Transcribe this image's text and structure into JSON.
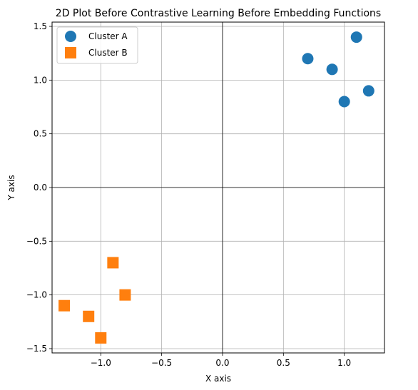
{
  "chart_data": {
    "type": "scatter",
    "title": "2D Plot Before Contrastive Learning Before Embedding Functions",
    "xlabel": "X axis",
    "ylabel": "Y axis",
    "xlim": [
      -1.4,
      1.33
    ],
    "ylim": [
      -1.54,
      1.54
    ],
    "xticks": [
      -1.0,
      -0.5,
      0.0,
      0.5,
      1.0
    ],
    "xtick_labels": [
      "−1.0",
      "−0.5",
      "0.0",
      "0.5",
      "1.0"
    ],
    "yticks": [
      -1.5,
      -1.0,
      -0.5,
      0.0,
      0.5,
      1.0,
      1.5
    ],
    "ytick_labels": [
      "−1.5",
      "−1.0",
      "−0.5",
      "0.0",
      "0.5",
      "1.0",
      "1.5"
    ],
    "grid": true,
    "zero_lines": true,
    "legend_position": "top-left",
    "series": [
      {
        "name": "Cluster A",
        "marker": "circle",
        "color": "#1f77b4",
        "points": [
          [
            0.7,
            1.2
          ],
          [
            0.9,
            1.1
          ],
          [
            1.1,
            1.4
          ],
          [
            1.0,
            0.8
          ],
          [
            1.2,
            0.9
          ]
        ]
      },
      {
        "name": "Cluster B",
        "marker": "square",
        "color": "#ff7f0e",
        "points": [
          [
            -0.9,
            -0.7
          ],
          [
            -0.8,
            -1.0
          ],
          [
            -1.3,
            -1.1
          ],
          [
            -1.1,
            -1.2
          ],
          [
            -1.0,
            -1.4
          ]
        ]
      }
    ]
  }
}
